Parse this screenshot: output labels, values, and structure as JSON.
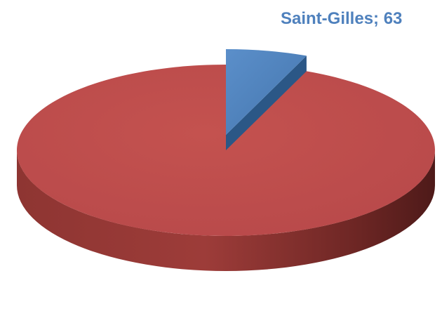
{
  "chart_data": {
    "type": "pie",
    "style": "3d-exploded",
    "legend": "none",
    "slices": [
      {
        "name": "",
        "value": 937,
        "color": "#c0504d",
        "label": ""
      },
      {
        "name": "Saint-Gilles",
        "value": 63,
        "color": "#4f81bd",
        "label": "Saint-Gilles; 63"
      }
    ]
  }
}
